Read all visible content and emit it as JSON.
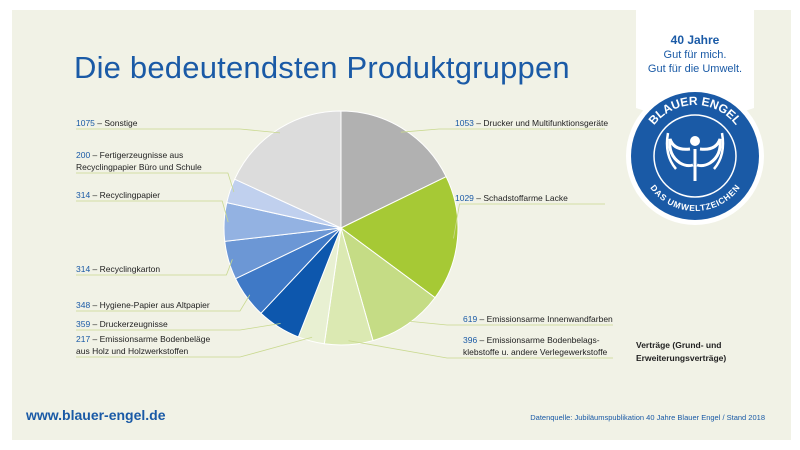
{
  "title": "Die bedeutendsten Produktgruppen",
  "badge": {
    "line1": "40 Jahre",
    "line2": "Gut für mich.",
    "line3": "Gut für die Umwelt."
  },
  "seal": {
    "top_text": "BLAUER ENGEL",
    "bottom_text": "DAS UMWELTZEICHEN"
  },
  "website": "www.blauer-engel.de",
  "source": "Datenquelle: Jubiläumspublikation 40 Jahre Blauer Engel / Stand 2018",
  "legend_note": [
    "Verträge (Grund- und",
    "Erweiterungsverträge)"
  ],
  "chart_data": {
    "type": "pie",
    "slices": [
      {
        "value": 1053,
        "label": [
          "Drucker und Multifunktionsgeräte"
        ],
        "color": "#b1b1b1"
      },
      {
        "value": 1029,
        "label": [
          "Schadstoffarme Lacke"
        ],
        "color": "#a6c935"
      },
      {
        "value": 619,
        "label": [
          "Emissionsarme Innenwandfarben"
        ],
        "color": "#c5dc85"
      },
      {
        "value": 396,
        "label": [
          "Emissionsarme Bodenbelags-",
          "klebstoffe u. andere Verlegewerkstoffe"
        ],
        "color": "#dbe9b2"
      },
      {
        "value": 217,
        "label": [
          "Emissionsarme Bodenbeläge",
          "aus Holz und Holzwerkstoffen"
        ],
        "color": "#e8f0d2"
      },
      {
        "value": 359,
        "label": [
          "Druckerzeugnisse"
        ],
        "color": "#0d57ad"
      },
      {
        "value": 348,
        "label": [
          "Hygiene-Papier aus Altpapier"
        ],
        "color": "#3f79c6"
      },
      {
        "value": 314,
        "label": [
          "Recyclingkarton"
        ],
        "color": "#6c97d5"
      },
      {
        "value": 314,
        "label": [
          "Recyclingpapier"
        ],
        "color": "#93b2e2"
      },
      {
        "value": 200,
        "label": [
          "Fertigerzeugnisse aus",
          "Recyclingpapier Büro und Schule"
        ],
        "color": "#c0d0ee"
      },
      {
        "value": 1075,
        "label": [
          "Sonstige"
        ],
        "color": "#dcdcdc"
      }
    ]
  }
}
